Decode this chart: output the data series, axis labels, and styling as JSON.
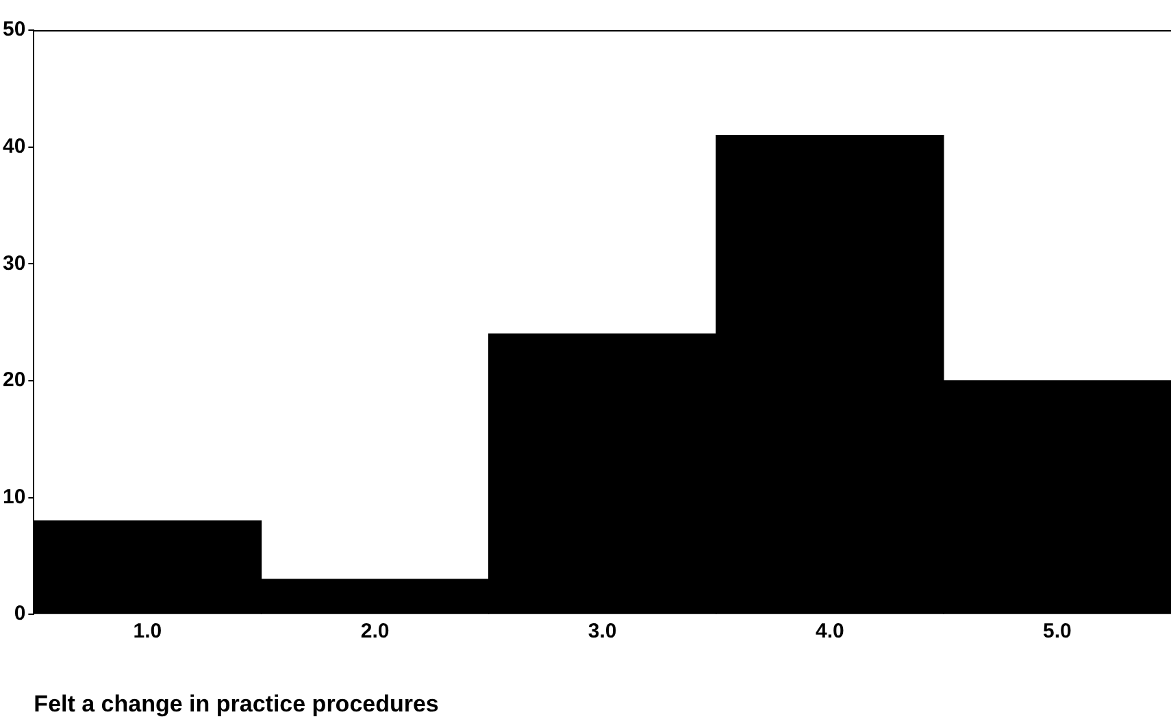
{
  "chart_data": {
    "type": "bar",
    "xlabel": "Felt a change in practice procedures",
    "categories": [
      "1.0",
      "2.0",
      "3.0",
      "4.0",
      "5.0"
    ],
    "values": [
      8,
      3,
      24,
      41,
      20
    ],
    "color": "#000000",
    "ylim": [
      0,
      50
    ],
    "yticks": [
      0,
      10,
      20,
      30,
      40,
      50
    ],
    "grid": false
  }
}
